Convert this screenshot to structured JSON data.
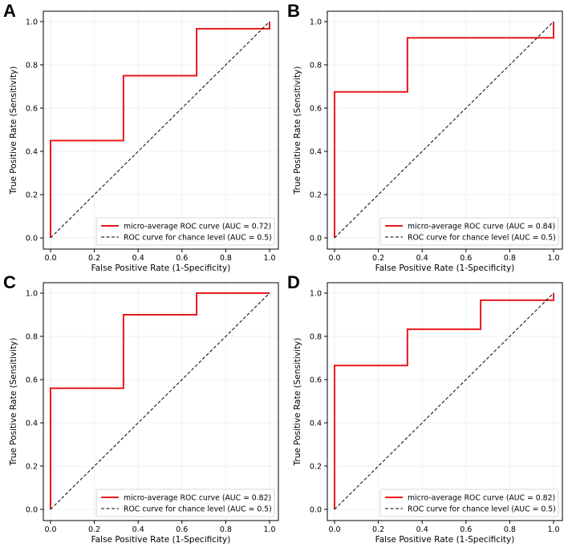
{
  "chart_data": [
    {
      "panel_label": "A",
      "type": "line",
      "xlabel": "False Positive Rate (1-Specificity)",
      "ylabel": "True Positive Rate (Sensitivity)",
      "xlim": [
        0,
        1
      ],
      "ylim": [
        0,
        1
      ],
      "xticks": [
        "0.0",
        "0.2",
        "0.4",
        "0.6",
        "0.8",
        "1.0"
      ],
      "yticks": [
        "0.0",
        "0.2",
        "0.4",
        "0.6",
        "0.8",
        "1.0"
      ],
      "grid": true,
      "legend_position": "bottom-right",
      "series": [
        {
          "name": "micro-average ROC curve (AUC = 0.72)",
          "color": "#e8191a",
          "style": "solid",
          "x": [
            0,
            0,
            0.333,
            0.333,
            0.667,
            0.667,
            1,
            1
          ],
          "y": [
            0,
            0.45,
            0.45,
            0.75,
            0.75,
            0.967,
            0.967,
            1
          ]
        },
        {
          "name": "ROC curve for chance level (AUC = 0.5)",
          "color": "#000000",
          "style": "dashed",
          "x": [
            0,
            1
          ],
          "y": [
            0,
            1
          ]
        }
      ]
    },
    {
      "panel_label": "B",
      "type": "line",
      "xlabel": "False Positive Rate (1-Specificity)",
      "ylabel": "True Positive Rate (Sensitivity)",
      "xlim": [
        0,
        1
      ],
      "ylim": [
        0,
        1
      ],
      "xticks": [
        "0.0",
        "0.2",
        "0.4",
        "0.6",
        "0.8",
        "1.0"
      ],
      "yticks": [
        "0.0",
        "0.2",
        "0.4",
        "0.6",
        "0.8",
        "1.0"
      ],
      "grid": true,
      "legend_position": "bottom-right",
      "series": [
        {
          "name": "micro-average ROC curve (AUC = 0.84)",
          "color": "#e8191a",
          "style": "solid",
          "x": [
            0,
            0,
            0.333,
            0.333,
            1,
            1
          ],
          "y": [
            0,
            0.675,
            0.675,
            0.925,
            0.925,
            1
          ]
        },
        {
          "name": "ROC curve for chance level (AUC = 0.5)",
          "color": "#000000",
          "style": "dashed",
          "x": [
            0,
            1
          ],
          "y": [
            0,
            1
          ]
        }
      ]
    },
    {
      "panel_label": "C",
      "type": "line",
      "xlabel": "False Positive Rate (1-Specificity)",
      "ylabel": "True Positive Rate (Sensitivity)",
      "xlim": [
        0,
        1
      ],
      "ylim": [
        0,
        1
      ],
      "xticks": [
        "0.0",
        "0.2",
        "0.4",
        "0.6",
        "0.8",
        "1.0"
      ],
      "yticks": [
        "0.0",
        "0.2",
        "0.4",
        "0.6",
        "0.8",
        "1.0"
      ],
      "grid": true,
      "legend_position": "bottom-right",
      "series": [
        {
          "name": "micro-average ROC curve (AUC = 0.82)",
          "color": "#e8191a",
          "style": "solid",
          "x": [
            0,
            0,
            0.333,
            0.333,
            0.667,
            0.667,
            1
          ],
          "y": [
            0,
            0.56,
            0.56,
            0.9,
            0.9,
            1,
            1
          ]
        },
        {
          "name": "ROC curve for chance level (AUC = 0.5)",
          "color": "#000000",
          "style": "dashed",
          "x": [
            0,
            1
          ],
          "y": [
            0,
            1
          ]
        }
      ]
    },
    {
      "panel_label": "D",
      "type": "line",
      "xlabel": "False Positive Rate (1-Specificity)",
      "ylabel": "True Positive Rate (Sensitivity)",
      "xlim": [
        0,
        1
      ],
      "ylim": [
        0,
        1
      ],
      "xticks": [
        "0.0",
        "0.2",
        "0.4",
        "0.6",
        "0.8",
        "1.0"
      ],
      "yticks": [
        "0.0",
        "0.2",
        "0.4",
        "0.6",
        "0.8",
        "1.0"
      ],
      "grid": true,
      "legend_position": "bottom-right",
      "series": [
        {
          "name": "micro-average ROC curve (AUC = 0.82)",
          "color": "#e8191a",
          "style": "solid",
          "x": [
            0,
            0,
            0.333,
            0.333,
            0.667,
            0.667,
            1,
            1
          ],
          "y": [
            0,
            0.665,
            0.665,
            0.833,
            0.833,
            0.967,
            0.967,
            1
          ]
        },
        {
          "name": "ROC curve for chance level (AUC = 0.5)",
          "color": "#000000",
          "style": "dashed",
          "x": [
            0,
            1
          ],
          "y": [
            0,
            1
          ]
        }
      ]
    }
  ]
}
